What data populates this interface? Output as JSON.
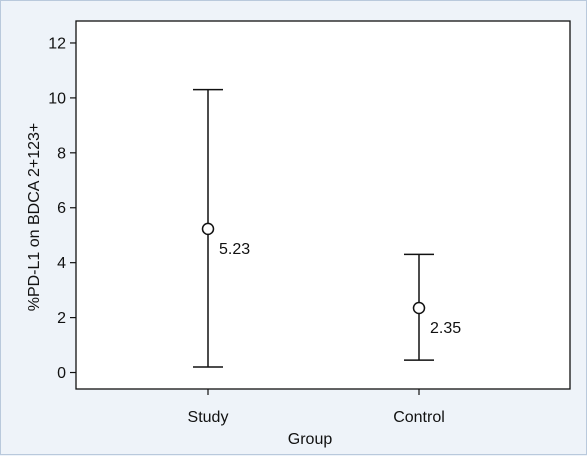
{
  "chart_data": {
    "type": "error-bar",
    "xlabel": "Group",
    "ylabel": "%PD-L1 on BDCA 2+123+",
    "ylim": [
      -0.6,
      12.8
    ],
    "yticks": [
      0,
      2,
      4,
      6,
      8,
      10,
      12
    ],
    "categories": [
      "Study",
      "Control"
    ],
    "points": [
      {
        "category": "Study",
        "mean": 5.23,
        "lower": 0.2,
        "upper": 10.3,
        "label": "5.23"
      },
      {
        "category": "Control",
        "mean": 2.35,
        "lower": 0.45,
        "upper": 4.3,
        "label": "2.35"
      }
    ],
    "grid": false,
    "colors": {
      "background": "#eef3f9",
      "plot_area": "#ffffff",
      "frame_border": "#b9c9dc",
      "ink": "#111111"
    }
  }
}
